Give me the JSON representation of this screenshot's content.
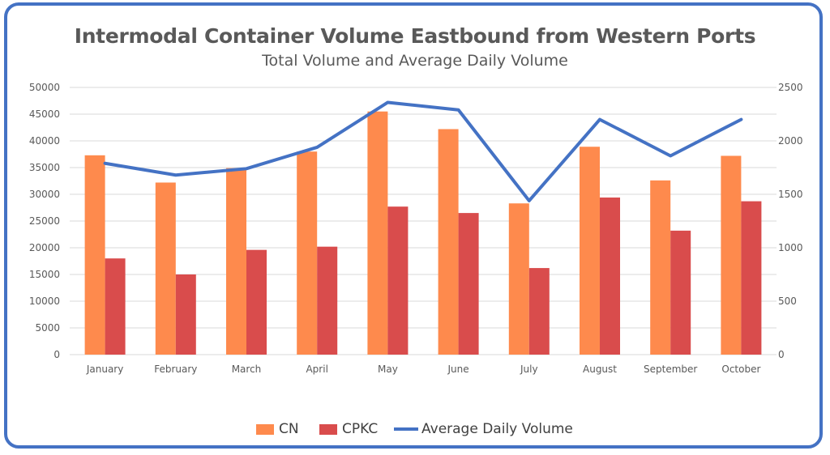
{
  "chart_data": {
    "type": "bar",
    "title": "Intermodal Container Volume Eastbound from Western Ports",
    "subtitle": "Total Volume and Average Daily Volume",
    "categories": [
      "January",
      "February",
      "March",
      "April",
      "May",
      "June",
      "July",
      "August",
      "September",
      "October"
    ],
    "series": [
      {
        "name": "CN",
        "type": "bar",
        "axis": "left",
        "color": "#fe8a4d",
        "values": [
          37300,
          32200,
          34900,
          38000,
          45500,
          42200,
          28300,
          38900,
          32600,
          37200
        ]
      },
      {
        "name": "CPKC",
        "type": "bar",
        "axis": "left",
        "color": "#d94c4c",
        "values": [
          18000,
          15000,
          19600,
          20200,
          27700,
          26500,
          16200,
          29400,
          23200,
          28700
        ]
      },
      {
        "name": "Average Daily Volume",
        "type": "line",
        "axis": "right",
        "color": "#4472c4",
        "values": [
          1790,
          1680,
          1740,
          1940,
          2360,
          2290,
          1440,
          2200,
          1860,
          2200
        ]
      }
    ],
    "y_left": {
      "min": 0,
      "max": 50000,
      "step": 5000
    },
    "y_right": {
      "min": 0,
      "max": 2500,
      "step": 500
    },
    "grid": true,
    "legend_position": "bottom"
  }
}
